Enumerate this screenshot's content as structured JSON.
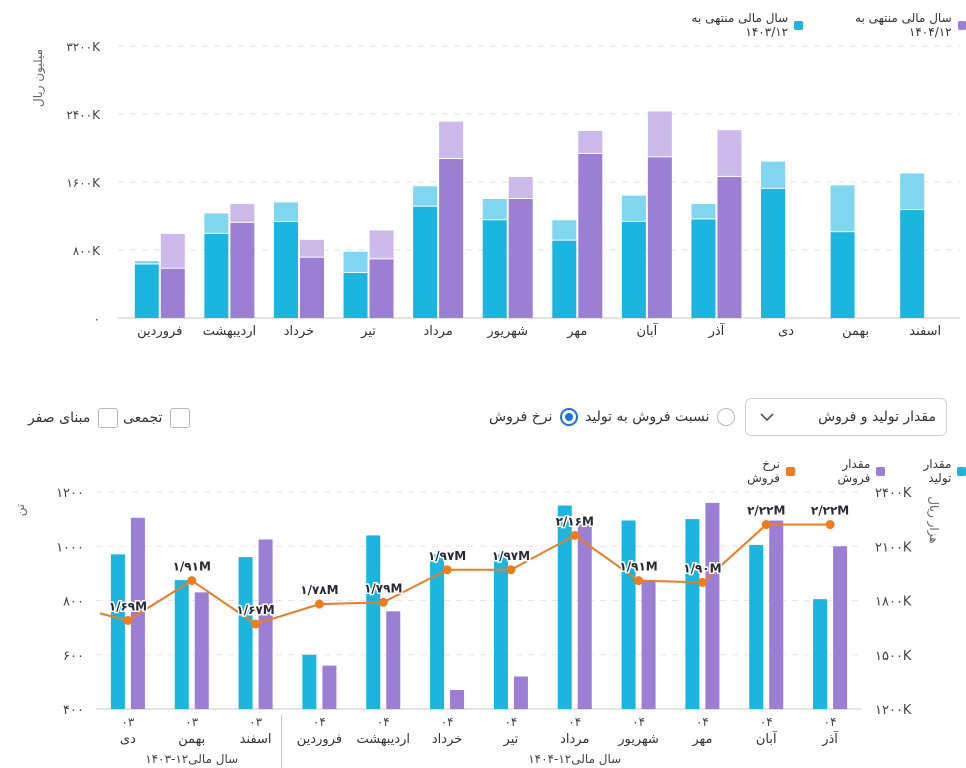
{
  "chart1": {
    "legend": [
      {
        "label": "سال مالی منتهی به ۱۴۰۴/۱۲",
        "color": "#9b7fd4"
      },
      {
        "label": "سال مالی منتهی به ۱۴۰۳/۱۲",
        "color": "#1ab6e0"
      }
    ],
    "ylabel": "میلیون ریال",
    "yticks": [
      "۰",
      "۸۰۰K",
      "۱۶۰۰K",
      "۲۴۰۰K",
      "۳۲۰۰K"
    ],
    "colors": {
      "cyan": "#1ab6e0",
      "cyan_light": "#7fd6ee",
      "purple": "#9b7fd4",
      "purple_light": "#cbbaea"
    }
  },
  "chart_data": [
    {
      "type": "bar",
      "title": "",
      "ylabel": "میلیون ریال",
      "ylim": [
        0,
        3200
      ],
      "categories": [
        "فروردین",
        "اردیبهشت",
        "خرداد",
        "تیر",
        "مرداد",
        "شهریور",
        "مهر",
        "آبان",
        "آذر",
        "دی",
        "بهمن",
        "اسفند"
      ],
      "series": [
        {
          "name": "سال مالی منتهی به ۱۴۰۳/۱۲",
          "stack": "1403",
          "part": "base",
          "values": [
            630,
            990,
            1130,
            530,
            1310,
            1150,
            910,
            1130,
            1160,
            1520,
            1010,
            1270
          ]
        },
        {
          "name": "سال مالی منتهی به ۱۴۰۳/۱۲",
          "stack": "1403",
          "part": "top",
          "values": [
            40,
            240,
            230,
            250,
            240,
            250,
            240,
            310,
            180,
            320,
            550,
            430
          ]
        },
        {
          "name": "سال مالی منتهی به ۱۴۰۴/۱۲",
          "stack": "1404",
          "part": "base",
          "values": [
            580,
            1120,
            710,
            690,
            1870,
            1400,
            1930,
            1890,
            1660,
            null,
            null,
            null
          ]
        },
        {
          "name": "سال مالی منتهی به ۱۴۰۴/۱۲",
          "stack": "1404",
          "part": "top",
          "values": [
            410,
            220,
            210,
            340,
            440,
            260,
            270,
            540,
            550,
            null,
            null,
            null
          ]
        }
      ]
    },
    {
      "type": "bar",
      "title": "",
      "ylabel": "تن",
      "y2label": "هزار ریال",
      "ylim": [
        400,
        1200
      ],
      "y2lim": [
        1200,
        2400
      ],
      "yticks": [
        "۴۰۰",
        "۶۰۰",
        "۸۰۰",
        "۱۰۰۰",
        "۱۲۰۰"
      ],
      "y2ticks": [
        "۱۲۰۰K",
        "۱۵۰۰K",
        "۱۸۰۰K",
        "۲۱۰۰K",
        "۲۴۰۰K"
      ],
      "categories": [
        {
          "code": "۰۳",
          "month": "دی"
        },
        {
          "code": "۰۳",
          "month": "بهمن"
        },
        {
          "code": "۰۳",
          "month": "اسفند"
        },
        {
          "code": "۰۴",
          "month": "فروردین"
        },
        {
          "code": "۰۴",
          "month": "اردیبهشت"
        },
        {
          "code": "۰۴",
          "month": "خرداد"
        },
        {
          "code": "۰۴",
          "month": "تیر"
        },
        {
          "code": "۰۴",
          "month": "مرداد"
        },
        {
          "code": "۰۴",
          "month": "شهریور"
        },
        {
          "code": "۰۴",
          "month": "مهر"
        },
        {
          "code": "۰۴",
          "month": "آبان"
        },
        {
          "code": "۰۴",
          "month": "آذر"
        }
      ],
      "groups": [
        {
          "label": "سال مالی۱۲-۱۴۰۳",
          "from": 0,
          "to": 2
        },
        {
          "label": "سال مالی۱۲-۱۴۰۴",
          "from": 3,
          "to": 11
        }
      ],
      "series": [
        {
          "name": "مقدار تولید",
          "type": "bar",
          "axis": "left",
          "color": "#1ab6e0",
          "values": [
            970,
            875,
            960,
            600,
            1040,
            970,
            970,
            1150,
            1095,
            1100,
            1005,
            805
          ]
        },
        {
          "name": "مقدار فروش",
          "type": "bar",
          "axis": "left",
          "color": "#9b7fd4",
          "values": [
            1105,
            830,
            1025,
            560,
            760,
            470,
            520,
            1080,
            875,
            1160,
            1095,
            1000
          ]
        },
        {
          "name": "نرخ فروش",
          "type": "line",
          "axis": "right",
          "color": "#f07c1e",
          "values": [
            1690,
            1910,
            1670,
            1780,
            1790,
            1970,
            1970,
            2160,
            1910,
            1900,
            2220,
            2220
          ],
          "labels": [
            "۱/۶۹M",
            "۱/۹۱M",
            "۱/۶۷M",
            "۱/۷۸M",
            "۱/۷۹M",
            "۱/۹۷M",
            "۱/۹۷M",
            "۲/۱۶M",
            "۱/۹۱M",
            "۱/۹۰M",
            "۲/۲۲M",
            "۲/۲۲M"
          ]
        }
      ]
    }
  ],
  "controls": {
    "dropdown_label": "مقدار تولید و فروش",
    "radio_ratio": "نسبت فروش به تولید",
    "radio_rate": "نرخ فروش",
    "check_cumulative": "تجمعی",
    "check_zero": "مبنای صفر"
  },
  "chart2_legend": [
    {
      "label": "مقدار تولید",
      "color": "#1ab6e0"
    },
    {
      "label": "مقدار فروش",
      "color": "#9b7fd4"
    },
    {
      "label": "نرخ فروش",
      "color": "#f07c1e"
    }
  ]
}
